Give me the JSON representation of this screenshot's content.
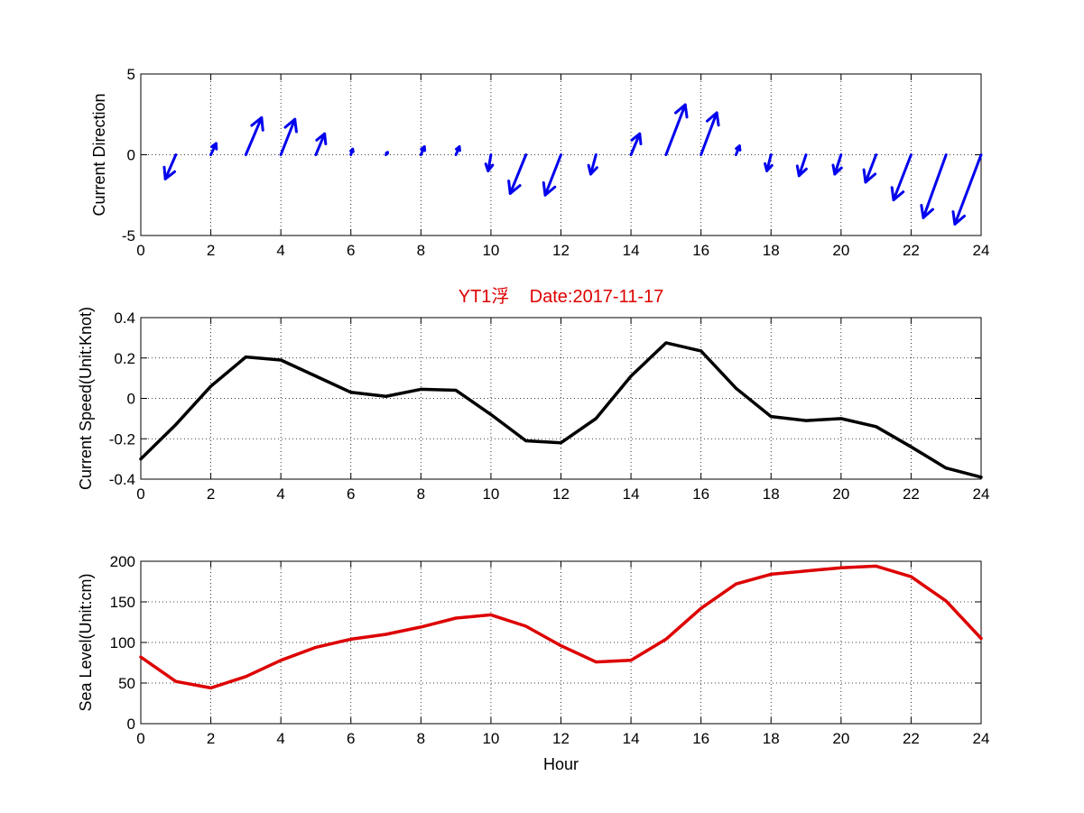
{
  "chart_data": [
    {
      "type": "quiver",
      "title": "",
      "xlabel": "",
      "ylabel": "Current Direction",
      "xlim": [
        0,
        24
      ],
      "ylim": [
        -5,
        5
      ],
      "xticks": [
        0,
        2,
        4,
        6,
        8,
        10,
        12,
        14,
        16,
        18,
        20,
        22,
        24
      ],
      "yticks": [
        -5,
        0,
        5
      ],
      "grid": true,
      "color": "#0000ee",
      "x": [
        1,
        2,
        3,
        4,
        5,
        6,
        7,
        8,
        9,
        10,
        11,
        12,
        13,
        14,
        15,
        16,
        17,
        18,
        19,
        20,
        21,
        22,
        23,
        24
      ],
      "u": [
        -0.3,
        0.15,
        0.45,
        0.4,
        0.25,
        0.05,
        0.05,
        0.1,
        0.1,
        -0.08,
        -0.45,
        -0.45,
        -0.15,
        0.25,
        0.55,
        0.45,
        0.1,
        -0.12,
        -0.2,
        -0.18,
        -0.3,
        -0.5,
        -0.65,
        -0.75
      ],
      "v": [
        -1.5,
        0.7,
        2.3,
        2.2,
        1.3,
        0.35,
        0.15,
        0.5,
        0.5,
        -1.0,
        -2.4,
        -2.5,
        -1.2,
        1.3,
        3.1,
        2.6,
        0.55,
        -1.0,
        -1.3,
        -1.2,
        -1.7,
        -2.8,
        -3.9,
        -4.3
      ]
    },
    {
      "type": "line",
      "title": "YT1浮    Date:2017-11-17",
      "title_color": "#dd0000",
      "xlabel": "",
      "ylabel": "Current Speed(Unit:Knot)",
      "xlim": [
        0,
        24
      ],
      "ylim": [
        -0.4,
        0.4
      ],
      "xticks": [
        0,
        2,
        4,
        6,
        8,
        10,
        12,
        14,
        16,
        18,
        20,
        22,
        24
      ],
      "yticks": [
        -0.4,
        -0.2,
        0,
        0.2,
        0.4
      ],
      "ytick_labels": [
        "-0.4",
        "-0.2",
        "0",
        "0.2",
        "0.4"
      ],
      "grid": true,
      "series": [
        {
          "color": "#000000",
          "x": [
            0,
            1,
            2,
            3,
            4,
            5,
            6,
            7,
            8,
            9,
            10,
            11,
            12,
            13,
            14,
            15,
            16,
            17,
            18,
            19,
            20,
            21,
            22,
            23,
            24
          ],
          "values": [
            -0.3,
            -0.13,
            0.06,
            0.205,
            0.19,
            0.11,
            0.03,
            0.01,
            0.045,
            0.04,
            -0.08,
            -0.21,
            -0.22,
            -0.1,
            0.11,
            0.275,
            0.235,
            0.05,
            -0.09,
            -0.11,
            -0.1,
            -0.14,
            -0.24,
            -0.345,
            -0.39
          ]
        }
      ]
    },
    {
      "type": "line",
      "title": "",
      "xlabel": "Hour",
      "ylabel": "Sea Level(Unit:cm)",
      "xlim": [
        0,
        24
      ],
      "ylim": [
        0,
        200
      ],
      "xticks": [
        0,
        2,
        4,
        6,
        8,
        10,
        12,
        14,
        16,
        18,
        20,
        22,
        24
      ],
      "yticks": [
        0,
        50,
        100,
        150,
        200
      ],
      "grid": true,
      "series": [
        {
          "color": "#dd0000",
          "x": [
            0,
            1,
            2,
            3,
            4,
            5,
            6,
            7,
            8,
            9,
            10,
            11,
            12,
            13,
            14,
            15,
            16,
            17,
            18,
            19,
            20,
            21,
            22,
            23,
            24
          ],
          "values": [
            82,
            52,
            44,
            58,
            78,
            94,
            104,
            110,
            119,
            130,
            134,
            120,
            96,
            76,
            78,
            104,
            142,
            172,
            184,
            188,
            192,
            194,
            181,
            151,
            105
          ]
        }
      ]
    }
  ]
}
